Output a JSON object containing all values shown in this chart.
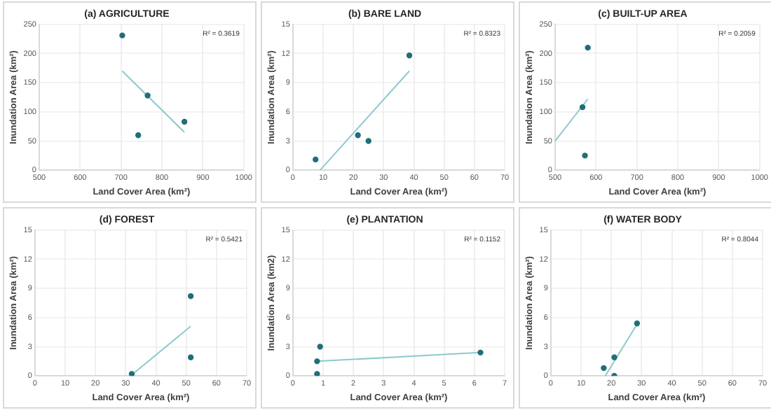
{
  "chart_data": [
    {
      "type": "scatter",
      "title": "(a) AGRICULTURE",
      "xlabel": "Land Cover Area (km²)",
      "ylabel": "Inundation Area (km²)",
      "annotations": [
        "R² = 0.3619"
      ],
      "xlim": [
        500,
        1000
      ],
      "xticks": [
        500,
        600,
        700,
        800,
        900,
        1000
      ],
      "ylim": [
        0,
        250
      ],
      "yticks": [
        0,
        50,
        100,
        150,
        200,
        250
      ],
      "grid": true,
      "series": [
        {
          "marker": "circle",
          "color": "#1f6f78",
          "x": [
            703,
            765,
            742,
            855
          ],
          "values": [
            231,
            128,
            60,
            83
          ]
        },
        {
          "type": "line",
          "marker": "none",
          "color": "#8ec9cf",
          "x": [
            703,
            855
          ],
          "values": [
            170,
            65
          ]
        }
      ]
    },
    {
      "type": "scatter",
      "title": "(b) BARE LAND",
      "xlabel": "Land Cover Area (km²)",
      "ylabel": "Inundation Area (km²)",
      "annotations": [
        "R² = 0.8323"
      ],
      "xlim": [
        0,
        70
      ],
      "xticks": [
        0,
        10,
        20,
        30,
        40,
        50,
        60,
        70
      ],
      "ylim": [
        0,
        15
      ],
      "yticks": [
        0,
        3,
        6,
        9,
        12,
        15
      ],
      "grid": true,
      "series": [
        {
          "marker": "circle",
          "color": "#1f6f78",
          "x": [
            7.5,
            21.5,
            25,
            38.5
          ],
          "values": [
            1.1,
            3.6,
            3.0,
            11.8
          ]
        },
        {
          "type": "line",
          "marker": "none",
          "color": "#8ec9cf",
          "x": [
            9,
            38.5
          ],
          "values": [
            0,
            10.2
          ]
        }
      ]
    },
    {
      "type": "scatter",
      "title": "(c) BUILT-UP AREA",
      "xlabel": "Land Cover Area (km²)",
      "ylabel": "Inundation Area (km²)",
      "annotations": [
        "R² = 0.2059"
      ],
      "xlim": [
        500,
        1000
      ],
      "xticks": [
        500,
        600,
        700,
        800,
        900,
        1000
      ],
      "ylim": [
        0,
        250
      ],
      "yticks": [
        0,
        50,
        100,
        150,
        200,
        250
      ],
      "grid": true,
      "series": [
        {
          "marker": "circle",
          "color": "#1f6f78",
          "x": [
            567,
            573,
            580
          ],
          "values": [
            108,
            25,
            210
          ]
        },
        {
          "type": "line",
          "marker": "none",
          "color": "#8ec9cf",
          "x": [
            500,
            580
          ],
          "values": [
            50,
            122
          ]
        }
      ]
    },
    {
      "type": "scatter",
      "title": "(d) FOREST",
      "xlabel": "Land Cover Area (km²)",
      "ylabel": "Inundation Area (km²)",
      "annotations": [
        "R² = 0.5421"
      ],
      "xlim": [
        0,
        70
      ],
      "xticks": [
        0,
        10,
        20,
        30,
        40,
        50,
        60,
        70
      ],
      "ylim": [
        0,
        15
      ],
      "yticks": [
        0,
        3,
        6,
        9,
        12,
        15
      ],
      "grid": true,
      "series": [
        {
          "marker": "circle",
          "color": "#1f6f78",
          "x": [
            32,
            51.5,
            51.5
          ],
          "values": [
            0.2,
            8.2,
            1.9
          ]
        },
        {
          "type": "line",
          "marker": "none",
          "color": "#8ec9cf",
          "x": [
            32,
            51.5
          ],
          "values": [
            0.1,
            5.1
          ]
        }
      ]
    },
    {
      "type": "scatter",
      "title": "(e) PLANTATION",
      "xlabel": "Land Cover Area (km²)",
      "ylabel": "Inundation Area (km2)",
      "annotations": [
        "R² = 0.1152"
      ],
      "xlim": [
        0,
        7
      ],
      "xticks": [
        0,
        1,
        2,
        3,
        4,
        5,
        6,
        7
      ],
      "ylim": [
        0,
        15
      ],
      "yticks": [
        0,
        3,
        6,
        9,
        12,
        15
      ],
      "grid": true,
      "series": [
        {
          "marker": "circle",
          "color": "#1f6f78",
          "x": [
            0.8,
            0.8,
            0.9,
            6.2
          ],
          "values": [
            0.2,
            1.5,
            3.0,
            2.4
          ]
        },
        {
          "type": "line",
          "marker": "none",
          "color": "#8ec9cf",
          "x": [
            0.8,
            6.2
          ],
          "values": [
            1.5,
            2.4
          ]
        }
      ]
    },
    {
      "type": "scatter",
      "title": "(f) WATER BODY",
      "xlabel": "Land Cover Area (km²)",
      "ylabel": "Inundation Area (km²)",
      "annotations": [
        "R² = 0.8044"
      ],
      "xlim": [
        0,
        70
      ],
      "xticks": [
        0,
        10,
        20,
        30,
        40,
        50,
        60,
        70
      ],
      "ylim": [
        0,
        15
      ],
      "yticks": [
        0,
        3,
        6,
        9,
        12,
        15
      ],
      "grid": true,
      "series": [
        {
          "marker": "circle",
          "color": "#1f6f78",
          "x": [
            17.5,
            21,
            21,
            28.5
          ],
          "values": [
            0.8,
            1.9,
            0,
            5.4
          ]
        },
        {
          "type": "line",
          "marker": "none",
          "color": "#8ec9cf",
          "x": [
            18,
            28.5
          ],
          "values": [
            0,
            5.3
          ]
        }
      ]
    }
  ]
}
